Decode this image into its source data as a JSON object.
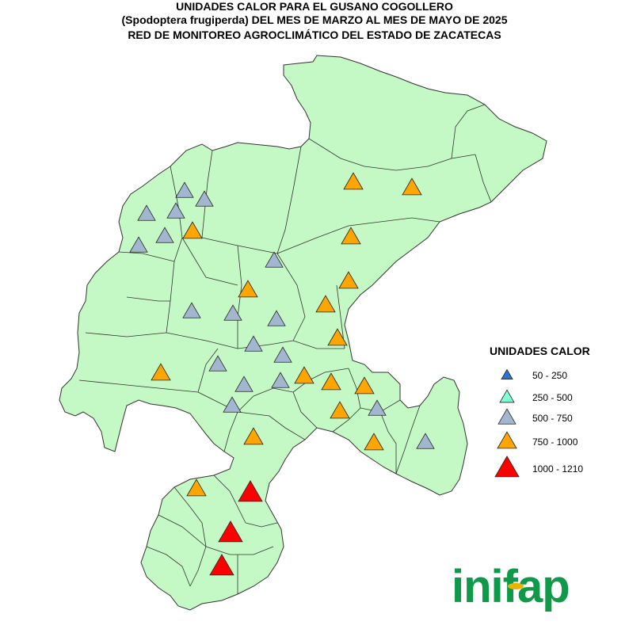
{
  "title": {
    "line1": "UNIDADES CALOR PARA EL GUSANO COGOLLERO",
    "line2": "(Spodoptera frugiperda) DEL MES DE MARZO AL MES DE MAYO DE 2025",
    "line3": "RED DE MONITOREO AGROCLIMÁTICO DEL ESTADO DE ZACATECAS"
  },
  "legend": {
    "title": "UNIDADES CALOR",
    "items": [
      {
        "label": "50 - 250",
        "color": "#2f6fd6"
      },
      {
        "label": "250 - 500",
        "color": "#7fffd4"
      },
      {
        "label": "500 - 750",
        "color": "#a3b6cf"
      },
      {
        "label": "750 - 1000",
        "color": "#ffa500"
      },
      {
        "label": "1000 - 1210",
        "color": "#ff0000"
      }
    ]
  },
  "logo": {
    "text": "inifap",
    "color": "#0e9a48",
    "dot_color": "#e8b400"
  },
  "map": {
    "fill": "#c4f8c4",
    "stroke": "#333333"
  },
  "stations": [
    {
      "cls": "750 - 1000"
    },
    {
      "cls": "750 - 1000"
    },
    {
      "cls": "500 - 750"
    },
    {
      "cls": "500 - 750"
    },
    {
      "cls": "500 - 750"
    },
    {
      "cls": "500 - 750"
    },
    {
      "cls": "500 - 750"
    },
    {
      "cls": "500 - 750"
    },
    {
      "cls": "750 - 1000"
    },
    {
      "cls": "750 - 1000"
    },
    {
      "cls": "500 - 750"
    },
    {
      "cls": "750 - 1000"
    },
    {
      "cls": "750 - 1000"
    },
    {
      "cls": "750 - 1000"
    },
    {
      "cls": "500 - 750"
    },
    {
      "cls": "500 - 750"
    },
    {
      "cls": "500 - 750"
    },
    {
      "cls": "750 - 1000"
    },
    {
      "cls": "500 - 750"
    },
    {
      "cls": "500 - 750"
    },
    {
      "cls": "750 - 1000"
    },
    {
      "cls": "500 - 750"
    },
    {
      "cls": "500 - 750"
    },
    {
      "cls": "500 - 750"
    },
    {
      "cls": "750 - 1000"
    },
    {
      "cls": "750 - 1000"
    },
    {
      "cls": "750 - 1000"
    },
    {
      "cls": "500 - 750"
    },
    {
      "cls": "750 - 1000"
    },
    {
      "cls": "500 - 750"
    },
    {
      "cls": "500 - 750"
    },
    {
      "cls": "750 - 1000"
    },
    {
      "cls": "750 - 1000"
    },
    {
      "cls": "1000 - 1210"
    },
    {
      "cls": "750 - 1000"
    },
    {
      "cls": "1000 - 1210"
    },
    {
      "cls": "1000 - 1210"
    }
  ]
}
